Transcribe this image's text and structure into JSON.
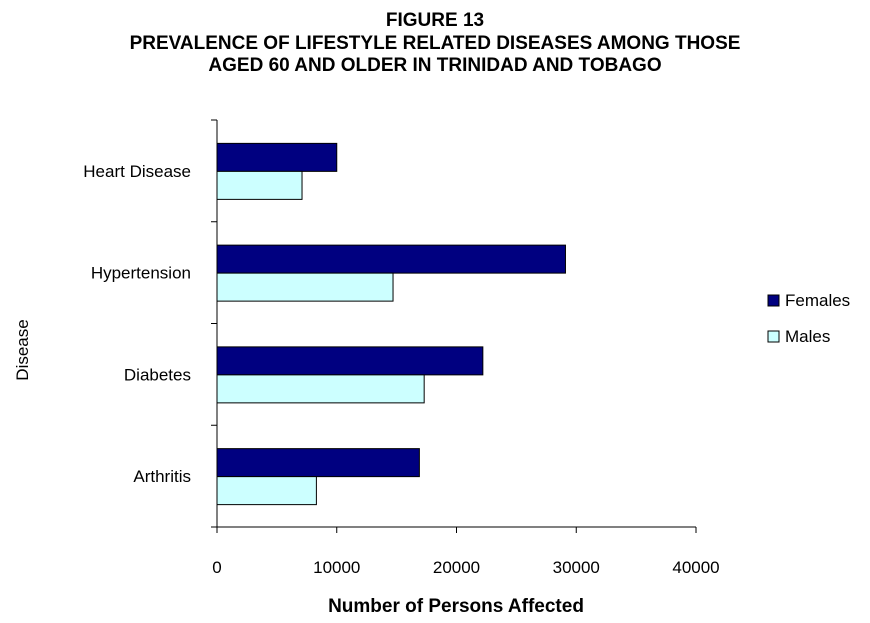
{
  "chart_data": {
    "type": "bar",
    "orientation": "horizontal",
    "title": "FIGURE 13",
    "subtitle_lines": [
      "PREVALENCE OF LIFESTYLE RELATED DISEASES AMONG THOSE",
      "AGED 60 AND OLDER IN TRINIDAD AND TOBAGO"
    ],
    "xlabel": "Number of Persons Affected",
    "ylabel": "Disease",
    "categories": [
      "Heart Disease",
      "Hypertension",
      "Diabetes",
      "Arthritis"
    ],
    "series": [
      {
        "name": "Females",
        "color": "#000080",
        "values": [
          10000,
          29100,
          22200,
          16900
        ]
      },
      {
        "name": "Males",
        "color": "#CCFFFF",
        "values": [
          7100,
          14700,
          17300,
          8300
        ]
      }
    ],
    "xlim": [
      0,
      40000
    ],
    "x_ticks": [
      0,
      10000,
      20000,
      30000,
      40000
    ],
    "x_tick_labels": [
      "0",
      "10000",
      "20000",
      "30000",
      "40000"
    ],
    "grid": false,
    "legend_position": "right"
  }
}
